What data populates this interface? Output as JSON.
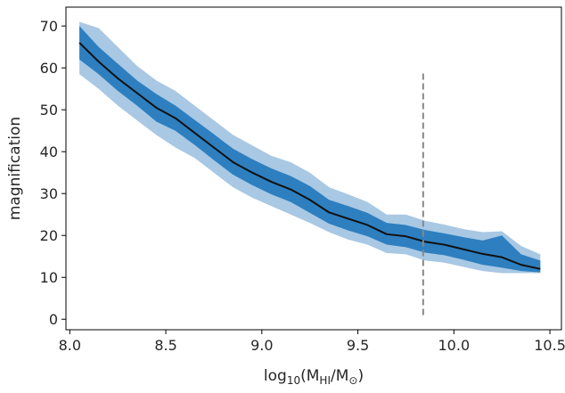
{
  "chart_data": {
    "type": "line",
    "xlabel": {
      "prefix": "log",
      "prefix_sub": "10",
      "open": "(M",
      "num_sub": "HI",
      "slash": "/M",
      "den_sub": "⊙",
      "close": ")"
    },
    "ylabel": "magnification",
    "xlim": [
      7.98,
      10.56
    ],
    "ylim": [
      -2.5,
      74.5
    ],
    "xticks": [
      8.0,
      8.5,
      9.0,
      9.5,
      10.0,
      10.5
    ],
    "xtick_labels": [
      "8.0",
      "8.5",
      "9.0",
      "9.5",
      "10.0",
      "10.5"
    ],
    "yticks": [
      0,
      10,
      20,
      30,
      40,
      50,
      60,
      70
    ],
    "ytick_labels": [
      "0",
      "10",
      "20",
      "30",
      "40",
      "50",
      "60",
      "70"
    ],
    "grid": false,
    "legend": "none",
    "colors": {
      "outer_band": "#a8c8e4",
      "inner_band": "#2e7fbf",
      "median_line": "#111111",
      "vline": "#888888",
      "axes": "#000000"
    },
    "series": [
      {
        "role": "median",
        "x": [
          8.05,
          8.15,
          8.25,
          8.35,
          8.45,
          8.55,
          8.65,
          8.75,
          8.85,
          8.95,
          9.05,
          9.15,
          9.25,
          9.35,
          9.45,
          9.55,
          9.65,
          9.75,
          9.85,
          9.95,
          10.05,
          10.15,
          10.25,
          10.35,
          10.45
        ],
        "y": [
          66.0,
          61.5,
          57.5,
          54.0,
          50.5,
          48.0,
          44.5,
          41.0,
          37.5,
          35.0,
          32.8,
          31.0,
          28.5,
          25.5,
          24.0,
          22.5,
          20.3,
          19.8,
          18.5,
          17.8,
          16.7,
          15.6,
          14.8,
          13.0,
          12.0
        ]
      },
      {
        "role": "inner_band",
        "x": [
          8.05,
          8.15,
          8.25,
          8.35,
          8.45,
          8.55,
          8.65,
          8.75,
          8.85,
          8.95,
          9.05,
          9.15,
          9.25,
          9.35,
          9.45,
          9.55,
          9.65,
          9.75,
          9.85,
          9.95,
          10.05,
          10.15,
          10.25,
          10.35,
          10.45
        ],
        "upper": [
          70.0,
          65.0,
          61.0,
          57.0,
          53.8,
          51.0,
          47.6,
          44.2,
          40.7,
          38.2,
          36.0,
          34.2,
          31.8,
          28.5,
          27.0,
          25.4,
          23.0,
          22.5,
          21.3,
          20.5,
          19.6,
          18.8,
          20.0,
          15.5,
          14.0
        ],
        "lower": [
          62.0,
          58.5,
          54.5,
          51.0,
          47.2,
          45.0,
          41.6,
          38.0,
          34.5,
          32.0,
          29.8,
          28.0,
          25.4,
          22.8,
          21.2,
          19.8,
          17.8,
          17.2,
          15.9,
          15.3,
          14.2,
          13.0,
          12.3,
          11.5,
          11.2
        ]
      },
      {
        "role": "outer_band",
        "x": [
          8.05,
          8.15,
          8.25,
          8.35,
          8.45,
          8.55,
          8.65,
          8.75,
          8.85,
          8.95,
          9.05,
          9.15,
          9.25,
          9.35,
          9.45,
          9.55,
          9.65,
          9.75,
          9.85,
          9.95,
          10.05,
          10.15,
          10.25,
          10.35,
          10.45
        ],
        "upper": [
          71.0,
          69.5,
          65.0,
          60.5,
          57.0,
          54.5,
          51.0,
          47.5,
          44.0,
          41.5,
          39.0,
          37.5,
          35.0,
          31.5,
          29.8,
          28.0,
          25.0,
          25.0,
          23.5,
          22.6,
          21.5,
          20.8,
          21.0,
          17.5,
          15.5
        ],
        "lower": [
          58.5,
          55.0,
          51.0,
          47.5,
          44.0,
          41.0,
          38.5,
          35.0,
          31.5,
          29.0,
          27.0,
          25.0,
          23.0,
          20.8,
          19.0,
          17.8,
          15.8,
          15.5,
          14.0,
          13.5,
          12.5,
          11.5,
          11.0,
          11.0,
          11.0
        ]
      }
    ],
    "vline": {
      "x": 9.84,
      "y0": 1.0,
      "y1": 59.5,
      "style": "dashed"
    }
  }
}
